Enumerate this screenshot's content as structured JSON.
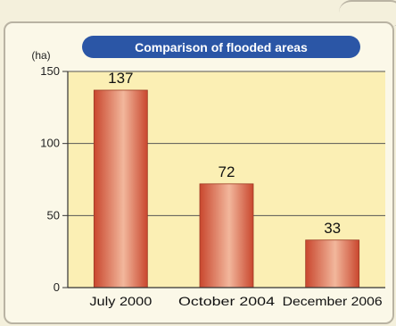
{
  "chart_data": {
    "type": "bar",
    "title": "Comparison of flooded areas",
    "unit_label": "(ha)",
    "categories": [
      "July 2000",
      "October 2004",
      "December 2006"
    ],
    "values": [
      137,
      72,
      33
    ],
    "yticks": [
      0,
      50,
      100,
      150
    ],
    "ylim": [
      0,
      150
    ],
    "grid": true,
    "colors": {
      "bar_dark": "#c9472e",
      "bar_light": "#f2b79c",
      "plot_bg": "#fbefb4",
      "title_bg": "#2b56a6",
      "grid": "#555555"
    }
  }
}
